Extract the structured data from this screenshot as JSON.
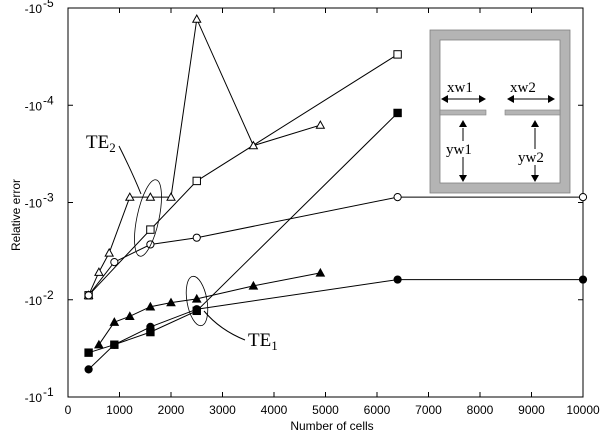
{
  "chart_data": {
    "type": "line",
    "xlabel": "Number of cells",
    "ylabel": "Relative error",
    "xlim": [
      0,
      10000
    ],
    "x_ticks": [
      "0",
      "1000",
      "2000",
      "3000",
      "4000",
      "5000",
      "6000",
      "7000",
      "8000",
      "9000",
      "10000"
    ],
    "y_scale": "log",
    "y_ticks": [
      {
        "base": "-10",
        "exp": "-5",
        "value": -1e-05
      },
      {
        "base": "-10",
        "exp": "-4",
        "value": -0.0001
      },
      {
        "base": "-10",
        "exp": "-3",
        "value": -0.001
      },
      {
        "base": "-10",
        "exp": "-2",
        "value": -0.01
      },
      {
        "base": "-10",
        "exp": "-1",
        "value": -0.1
      }
    ],
    "ylim": [
      -1e-05,
      -0.1
    ],
    "series": [
      {
        "marker": "open-triangle",
        "points": [
          [
            400,
            -0.009
          ],
          [
            600,
            -0.0052
          ],
          [
            800,
            -0.0033
          ],
          [
            1200,
            -0.00088
          ],
          [
            1600,
            -0.00088
          ],
          [
            2000,
            -0.00088
          ],
          [
            2500,
            -1.3e-05
          ],
          [
            3600,
            -0.00026
          ],
          [
            4900,
            -0.00016
          ]
        ]
      },
      {
        "marker": "open-square",
        "points": [
          [
            400,
            -0.009
          ],
          [
            1600,
            -0.0019
          ],
          [
            2500,
            -0.0006
          ],
          [
            6400,
            -3e-05
          ]
        ]
      },
      {
        "marker": "open-circle",
        "points": [
          [
            400,
            -0.009
          ],
          [
            900,
            -0.0041
          ],
          [
            1600,
            -0.0027
          ],
          [
            2500,
            -0.0023
          ],
          [
            6400,
            -0.00088
          ],
          [
            10000,
            -0.00088
          ]
        ]
      },
      {
        "marker": "filled-triangle",
        "points": [
          [
            600,
            -0.029
          ],
          [
            900,
            -0.017
          ],
          [
            1200,
            -0.0148
          ],
          [
            1600,
            -0.0118
          ],
          [
            2000,
            -0.0107
          ],
          [
            2500,
            -0.0098
          ],
          [
            3600,
            -0.0072
          ],
          [
            4900,
            -0.0053
          ]
        ]
      },
      {
        "marker": "filled-square",
        "points": [
          [
            400,
            -0.035
          ],
          [
            900,
            -0.029
          ],
          [
            1600,
            -0.0215
          ],
          [
            2500,
            -0.013
          ],
          [
            6400,
            -0.00012
          ]
        ]
      },
      {
        "marker": "filled-circle",
        "points": [
          [
            400,
            -0.052
          ],
          [
            900,
            -0.029
          ],
          [
            1600,
            -0.019
          ],
          [
            2500,
            -0.0125
          ],
          [
            6400,
            -0.0062
          ],
          [
            10000,
            -0.0062
          ]
        ]
      }
    ],
    "annotations": [
      {
        "text": "TE",
        "sub": "2",
        "target": "open-series cluster near 1500 cells"
      },
      {
        "text": "TE",
        "sub": "1",
        "target": "filled-series cluster near 2500 cells"
      }
    ],
    "inset": {
      "labels": [
        "xw1",
        "xw2",
        "yw1",
        "yw2"
      ]
    }
  },
  "colors": {
    "line": "#000000",
    "inset_border": "#b4b4b4",
    "inset_fill": "#ffffff"
  }
}
